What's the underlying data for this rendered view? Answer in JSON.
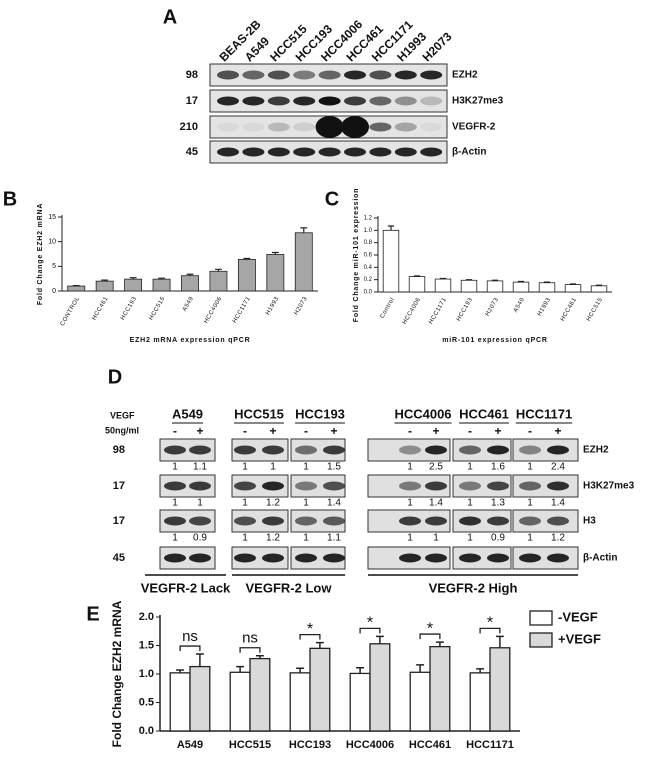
{
  "blot_a": {
    "label": "A",
    "lanes": [
      "BEAS-2B",
      "A549",
      "HCC515",
      "HCC193",
      "HCC4006",
      "HCC461",
      "HCC1171",
      "H1993",
      "H2073"
    ],
    "rows": [
      {
        "mw": "98",
        "name": "EZH2"
      },
      {
        "mw": "17",
        "name": "H3K27me3"
      },
      {
        "mw": "210",
        "name": "VEGFR-2"
      },
      {
        "mw": "45",
        "name": "β-Actin"
      }
    ]
  },
  "chart_data": [
    {
      "type": "bar",
      "panel": "B",
      "y_label": "Fold Change EZH2 mRNA",
      "x_label": "EZH2 mRNA expression qPCR",
      "categories": [
        "CONTROL",
        "HCC461",
        "HCC193",
        "HCC515",
        "A549",
        "HCC4006",
        "HCC1171",
        "H1993",
        "H2073"
      ],
      "values": [
        1,
        2.0,
        2.4,
        2.4,
        3.1,
        4.0,
        6.4,
        7.4,
        11.8
      ],
      "errors": [
        0.1,
        0.2,
        0.3,
        0.2,
        0.3,
        0.4,
        0.2,
        0.4,
        1.0
      ],
      "color": "#a6a6a6",
      "ylim": [
        0,
        15
      ],
      "yticks": [
        0,
        5,
        10,
        15
      ]
    },
    {
      "type": "bar",
      "panel": "C",
      "y_label": "Fold Change miR-101 expression",
      "x_label": "miR-101 expression qPCR",
      "categories": [
        "Control",
        "HCC4006",
        "HCC1171",
        "HCC193",
        "H2073",
        "A549",
        "H1993",
        "HCC461",
        "HCC515"
      ],
      "values": [
        1.0,
        0.25,
        0.21,
        0.19,
        0.18,
        0.16,
        0.15,
        0.12,
        0.1
      ],
      "errors": [
        0.07,
        0.01,
        0.01,
        0.01,
        0.01,
        0.01,
        0.01,
        0.01,
        0.01
      ],
      "color": "#ffffff",
      "ylim": [
        0,
        1.2
      ],
      "yticks": [
        {
          "value": 0,
          "label": "0.0"
        },
        0.2,
        0.4,
        0.6,
        0.8,
        {
          "value": 1,
          "label": "1.0"
        },
        1.2
      ]
    },
    {
      "type": "bar",
      "panel": "E",
      "y_label": "Fold Change EZH2 mRNA",
      "categories": [
        "A549",
        "HCC515",
        "HCC193",
        "HCC4006",
        "HCC461",
        "HCC1171"
      ],
      "series": [
        {
          "name": "-VEGF",
          "color": "#ffffff",
          "values": [
            1.02,
            1.03,
            1.02,
            1.01,
            1.03,
            1.02
          ],
          "errors": [
            0.05,
            0.1,
            0.08,
            0.1,
            0.13,
            0.07
          ]
        },
        {
          "name": "+VEGF",
          "color": "#d9d9d9",
          "values": [
            1.13,
            1.27,
            1.45,
            1.53,
            1.48,
            1.46
          ],
          "errors": [
            0.22,
            0.05,
            0.1,
            0.13,
            0.08,
            0.2
          ]
        }
      ],
      "annotations": [
        "ns",
        "ns",
        "*",
        "*",
        "*",
        "*"
      ],
      "ylim": [
        0,
        2
      ],
      "yticks": [
        {
          "value": 0,
          "label": "0.0"
        },
        0.5,
        {
          "value": 1,
          "label": "1.0"
        },
        1.5,
        {
          "value": 2,
          "label": "2.0"
        }
      ]
    }
  ],
  "blot_d": {
    "label": "D",
    "treatment": "VEGF",
    "dose": "50ng/ml",
    "groups": [
      {
        "name": "A549",
        "signs": [
          "-",
          "+"
        ]
      },
      {
        "name": "HCC515",
        "signs": [
          "-",
          "+"
        ]
      },
      {
        "name": "HCC193",
        "signs": [
          "-",
          "+"
        ]
      },
      {
        "name": "HCC4006",
        "signs": [
          "-",
          "+"
        ]
      },
      {
        "name": "HCC461",
        "signs": [
          "-",
          "+"
        ]
      },
      {
        "name": "HCC1171",
        "signs": [
          "-",
          "+"
        ]
      }
    ],
    "rows": [
      {
        "mw": "98",
        "name": "EZH2",
        "quant": [
          [
            1,
            1.1
          ],
          [
            1,
            1
          ],
          [
            1,
            1.5
          ],
          [
            1,
            2.5
          ],
          [
            1,
            1.6
          ],
          [
            1,
            2.4
          ]
        ]
      },
      {
        "mw": "17",
        "name": "H3K27me3",
        "quant": [
          [
            1,
            1
          ],
          [
            1,
            1.2
          ],
          [
            1,
            1.4
          ],
          [
            1,
            1.4
          ],
          [
            1,
            1.3
          ],
          [
            1,
            1.4
          ]
        ]
      },
      {
        "mw": "17",
        "name": "H3",
        "quant": [
          [
            1,
            0.9
          ],
          [
            1,
            1.2
          ],
          [
            1,
            1.1
          ],
          [
            1,
            1
          ],
          [
            1,
            0.9
          ],
          [
            1,
            1.2
          ]
        ]
      },
      {
        "mw": "45",
        "name": "β-Actin"
      }
    ],
    "classes": [
      "VEGFR-2 Lack",
      "VEGFR-2 Low",
      "VEGFR-2 High"
    ]
  }
}
